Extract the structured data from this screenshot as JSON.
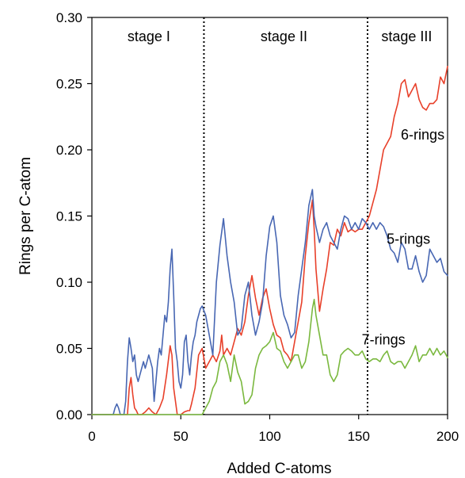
{
  "chart_data": {
    "type": "line",
    "xlabel": "Added C-atoms",
    "ylabel": "Rings per C-atom",
    "xlim": [
      0,
      200
    ],
    "ylim": [
      0,
      0.3
    ],
    "x_ticks": [
      "0",
      "50",
      "100",
      "150",
      "200"
    ],
    "y_ticks": [
      "0.00",
      "0.05",
      "0.10",
      "0.15",
      "0.20",
      "0.25",
      "0.30"
    ],
    "grid": false,
    "stage_boundaries": [
      63,
      155
    ],
    "stage_labels": [
      {
        "text": "stage I",
        "x": 32
      },
      {
        "text": "stage II",
        "x": 108
      },
      {
        "text": "stage III",
        "x": 177
      }
    ],
    "series": [
      {
        "name": "6-rings",
        "color": "#e8402a",
        "x": [
          0,
          20,
          21,
          22,
          23,
          24,
          25,
          26,
          27,
          28,
          30,
          32,
          34,
          36,
          38,
          40,
          42,
          44,
          45,
          46,
          48,
          50,
          52,
          54,
          55,
          56,
          58,
          60,
          62,
          64,
          66,
          68,
          70,
          72,
          73,
          74,
          76,
          78,
          80,
          82,
          84,
          86,
          88,
          90,
          92,
          94,
          96,
          98,
          100,
          102,
          104,
          106,
          108,
          110,
          112,
          114,
          116,
          118,
          120,
          122,
          124,
          125,
          126,
          128,
          130,
          132,
          134,
          136,
          138,
          140,
          142,
          144,
          146,
          148,
          150,
          152,
          154,
          156,
          158,
          160,
          162,
          164,
          166,
          168,
          170,
          172,
          174,
          176,
          178,
          180,
          182,
          184,
          186,
          188,
          190,
          192,
          194,
          196,
          198,
          200
        ],
        "values": [
          0,
          0,
          0.02,
          0.028,
          0.015,
          0.005,
          0.003,
          0,
          0,
          0,
          0.002,
          0.005,
          0.002,
          0,
          0.005,
          0.012,
          0.03,
          0.052,
          0.045,
          0.02,
          0,
          0,
          0.002,
          0.003,
          0.003,
          0.008,
          0.02,
          0.045,
          0.05,
          0.035,
          0.04,
          0.045,
          0.04,
          0.048,
          0.06,
          0.045,
          0.05,
          0.045,
          0.055,
          0.065,
          0.06,
          0.07,
          0.09,
          0.105,
          0.088,
          0.075,
          0.088,
          0.095,
          0.08,
          0.068,
          0.06,
          0.058,
          0.048,
          0.045,
          0.04,
          0.055,
          0.07,
          0.085,
          0.12,
          0.145,
          0.162,
          0.14,
          0.11,
          0.078,
          0.095,
          0.11,
          0.13,
          0.128,
          0.14,
          0.135,
          0.145,
          0.138,
          0.14,
          0.138,
          0.14,
          0.14,
          0.145,
          0.15,
          0.16,
          0.17,
          0.185,
          0.2,
          0.205,
          0.21,
          0.225,
          0.235,
          0.25,
          0.253,
          0.24,
          0.245,
          0.25,
          0.238,
          0.232,
          0.23,
          0.235,
          0.235,
          0.238,
          0.255,
          0.25,
          0.263
        ]
      },
      {
        "name": "5-rings",
        "color": "#4867b3",
        "x": [
          0,
          12,
          13,
          14,
          15,
          16,
          18,
          19,
          20,
          21,
          22,
          23,
          24,
          25,
          26,
          28,
          29,
          30,
          32,
          33,
          34,
          35,
          36,
          37,
          38,
          39,
          40,
          41,
          42,
          43,
          44,
          45,
          46,
          47,
          48,
          49,
          50,
          51,
          52,
          53,
          54,
          55,
          56,
          57,
          58,
          59,
          60,
          61,
          62,
          64,
          66,
          68,
          70,
          72,
          74,
          76,
          78,
          80,
          82,
          84,
          86,
          88,
          90,
          92,
          94,
          96,
          98,
          100,
          102,
          104,
          106,
          108,
          110,
          112,
          114,
          116,
          118,
          120,
          122,
          124,
          125,
          126,
          128,
          130,
          132,
          134,
          136,
          138,
          140,
          142,
          144,
          146,
          148,
          150,
          152,
          154,
          156,
          158,
          160,
          162,
          164,
          166,
          168,
          170,
          172,
          174,
          176,
          178,
          180,
          182,
          184,
          186,
          188,
          190,
          192,
          194,
          196,
          198,
          200
        ],
        "values": [
          0,
          0,
          0.005,
          0.008,
          0.005,
          0,
          0,
          0.01,
          0.04,
          0.058,
          0.05,
          0.04,
          0.045,
          0.03,
          0.025,
          0.035,
          0.04,
          0.035,
          0.045,
          0.04,
          0.035,
          0.01,
          0.025,
          0.04,
          0.05,
          0.045,
          0.06,
          0.075,
          0.07,
          0.085,
          0.11,
          0.125,
          0.09,
          0.05,
          0.04,
          0.025,
          0.02,
          0.03,
          0.055,
          0.06,
          0.04,
          0.03,
          0.045,
          0.055,
          0.06,
          0.07,
          0.075,
          0.08,
          0.082,
          0.075,
          0.06,
          0.045,
          0.1,
          0.128,
          0.148,
          0.12,
          0.1,
          0.085,
          0.06,
          0.065,
          0.09,
          0.1,
          0.075,
          0.06,
          0.07,
          0.085,
          0.12,
          0.142,
          0.15,
          0.13,
          0.09,
          0.075,
          0.068,
          0.058,
          0.062,
          0.09,
          0.11,
          0.13,
          0.158,
          0.17,
          0.15,
          0.142,
          0.13,
          0.14,
          0.145,
          0.135,
          0.13,
          0.125,
          0.14,
          0.15,
          0.148,
          0.14,
          0.145,
          0.14,
          0.148,
          0.145,
          0.14,
          0.145,
          0.14,
          0.145,
          0.142,
          0.135,
          0.125,
          0.122,
          0.115,
          0.13,
          0.125,
          0.11,
          0.11,
          0.12,
          0.108,
          0.1,
          0.105,
          0.125,
          0.12,
          0.115,
          0.118,
          0.108,
          0.105
        ]
      },
      {
        "name": "7-rings",
        "color": "#7ab83e",
        "x": [
          0,
          62,
          64,
          66,
          68,
          70,
          72,
          74,
          76,
          78,
          80,
          82,
          84,
          86,
          88,
          90,
          92,
          94,
          96,
          98,
          100,
          102,
          104,
          106,
          108,
          110,
          112,
          114,
          116,
          118,
          120,
          122,
          124,
          125,
          126,
          128,
          130,
          132,
          134,
          136,
          138,
          140,
          142,
          144,
          146,
          148,
          150,
          152,
          154,
          156,
          158,
          160,
          162,
          164,
          166,
          168,
          170,
          172,
          174,
          176,
          178,
          180,
          182,
          184,
          186,
          188,
          190,
          192,
          194,
          196,
          198,
          200
        ],
        "values": [
          0,
          0,
          0.005,
          0.01,
          0.02,
          0.025,
          0.04,
          0.045,
          0.038,
          0.025,
          0.045,
          0.032,
          0.025,
          0.008,
          0.01,
          0.015,
          0.035,
          0.045,
          0.05,
          0.052,
          0.055,
          0.062,
          0.05,
          0.048,
          0.04,
          0.035,
          0.04,
          0.045,
          0.045,
          0.035,
          0.04,
          0.055,
          0.08,
          0.087,
          0.075,
          0.06,
          0.045,
          0.045,
          0.03,
          0.025,
          0.03,
          0.045,
          0.048,
          0.05,
          0.048,
          0.045,
          0.045,
          0.048,
          0.042,
          0.04,
          0.042,
          0.042,
          0.04,
          0.045,
          0.048,
          0.04,
          0.038,
          0.04,
          0.04,
          0.035,
          0.04,
          0.045,
          0.052,
          0.04,
          0.045,
          0.045,
          0.05,
          0.045,
          0.05,
          0.045,
          0.048,
          0.043
        ]
      }
    ],
    "annotations": [
      {
        "text": "6-rings",
        "x": 186,
        "y": 0.2115,
        "color": "#000000"
      },
      {
        "text": "5-rings",
        "x": 178,
        "y": 0.1325,
        "color": "#000000"
      },
      {
        "text": "7-rings",
        "x": 164,
        "y": 0.0565,
        "color": "#000000"
      }
    ]
  }
}
